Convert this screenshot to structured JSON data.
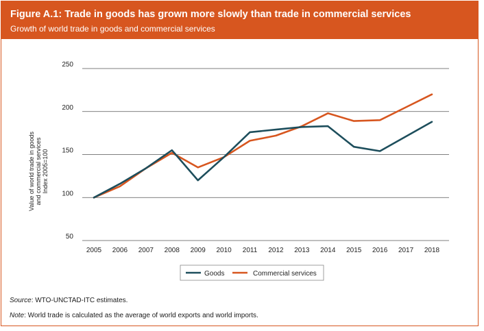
{
  "figure": {
    "title": "Figure A.1: Trade in goods has grown more slowly than trade in commercial services",
    "subtitle": "Growth of world trade in goods and commercial services"
  },
  "notes": {
    "source_label": "Source",
    "source_text": ": WTO-UNCTAD-ITC estimates.",
    "note_label": "Note",
    "note_text": ": World trade is calculated as the average of world exports and world imports."
  },
  "chart_data": {
    "type": "line",
    "title": "Growth of world trade in goods and commercial services",
    "x": [
      "2005",
      "2006",
      "2007",
      "2008",
      "2009",
      "2010",
      "2011",
      "2012",
      "2013",
      "2014",
      "2015",
      "2016",
      "2017",
      "2018"
    ],
    "series": [
      {
        "name": "Goods",
        "color": "#1d4e5c",
        "values": [
          100,
          116,
          134,
          155,
          120,
          147,
          176,
          179,
          182,
          183,
          159,
          154,
          171,
          188
        ]
      },
      {
        "name": "Commercial services",
        "color": "#d7561f",
        "values": [
          100,
          113,
          134,
          152,
          135,
          147,
          166,
          172,
          183,
          198,
          189,
          190,
          205,
          220
        ]
      }
    ],
    "ylim": [
      50,
      250
    ],
    "yticks": [
      50,
      100,
      150,
      200,
      250
    ],
    "ylabel_lines": [
      "Value of world trade in goods",
      "and commercial services",
      "Index 2005=100"
    ],
    "xlabel": "",
    "grid": "horizontal",
    "legend": "bottom-center"
  }
}
